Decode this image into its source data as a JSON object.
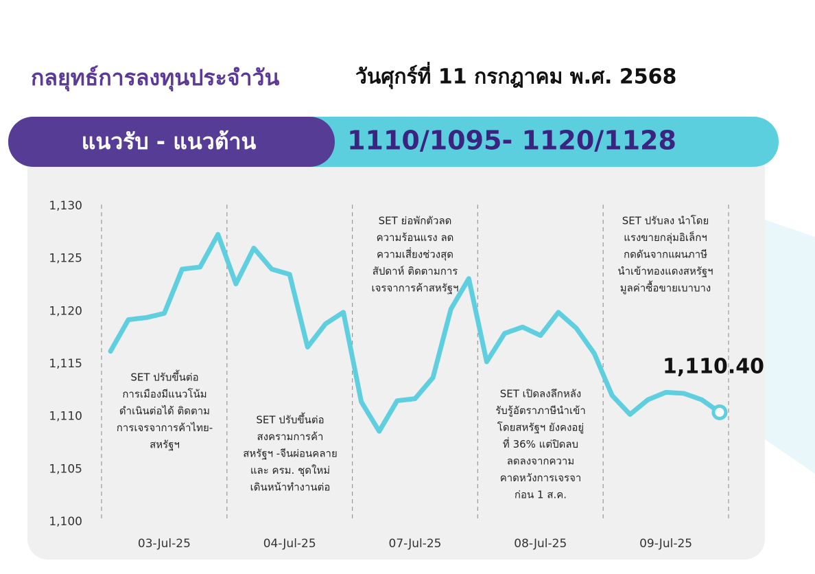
{
  "header": {
    "title": "กลยุทธ์การลงทุนประจำวัน",
    "date": "วันศุกร์ที่ 11 กรกฎาคม พ.ศ. 2568"
  },
  "banner": {
    "label": "แนวรับ - แนวต้าน",
    "levels": "1110/1095- 1120/1128"
  },
  "chart_data": {
    "type": "line",
    "color": "#5fcfe0",
    "categories": [
      null,
      null,
      null,
      "03-Jul-25",
      null,
      null,
      null,
      null,
      null,
      null,
      "04-Jul-25",
      null,
      null,
      null,
      null,
      null,
      null,
      "07-Jul-25",
      null,
      null,
      null,
      null,
      null,
      null,
      "08-Jul-25",
      null,
      null,
      null,
      null,
      null,
      null,
      "09-Jul-25",
      null,
      null,
      null
    ],
    "values": [
      1116.2,
      1119.2,
      1119.4,
      1119.8,
      1124.0,
      1124.2,
      1127.3,
      1122.6,
      1126.0,
      1124.0,
      1123.5,
      1116.6,
      1118.8,
      1119.9,
      1111.4,
      1108.6,
      1111.5,
      1111.7,
      1113.7,
      1120.2,
      1123.1,
      1115.2,
      1117.9,
      1118.5,
      1117.7,
      1119.9,
      1118.4,
      1116.0,
      1112.0,
      1110.2,
      1111.6,
      1112.3,
      1112.2,
      1111.6,
      1110.4
    ],
    "ylim": [
      1100,
      1130
    ],
    "yticks": [
      {
        "value": 1100,
        "label": "1,100"
      },
      {
        "value": 1105,
        "label": "1,105"
      },
      {
        "value": 1110,
        "label": "1,110"
      },
      {
        "value": 1115,
        "label": "1,115"
      },
      {
        "value": 1120,
        "label": "1,120"
      },
      {
        "value": 1125,
        "label": "1,125"
      },
      {
        "value": 1130,
        "label": "1,130"
      }
    ],
    "end_label": "1,110.40",
    "annotations": [
      [
        "SET ปรับขึ้นต่อ",
        "การเมืองมีแนวโน้ม",
        "ดำเนินต่อได้ ติดตาม",
        "การเจรจาการค้าไทย-",
        "สหรัฐฯ"
      ],
      [
        "SET ปรับขึ้นต่อ",
        "สงครามการค้า",
        "สหรัฐฯ -จีนผ่อนคลาย",
        "และ ครม. ชุดใหม่",
        "เดินหน้าทำงานต่อ"
      ],
      [
        "SET ย่อพักตัวลด",
        "ความร้อนแรง ลด",
        "ความเสี่ยงช่วงสุด",
        "สัปดาห์ ติดตามการ",
        "เจรจาการค้าสหรัฐฯ"
      ],
      [
        "SET เปิดลงลึกหลัง",
        "รับรู้อัตราภาษีนำเข้า",
        "โดยสหรัฐฯ ยังคงอยู่",
        "ที่ 36% แต่ปิดลบ",
        "ลดลงจากความ",
        "คาดหวังการเจรจา",
        "ก่อน 1 ส.ค."
      ],
      [
        "SET ปรับลง นำโดย",
        "แรงขายกลุ่มอิเล็กฯ",
        "กดดันจากแผนภาษี",
        "นำเข้าทองแดงสหรัฐฯ",
        "มูลค่าซื้อขายเบาบาง"
      ]
    ]
  }
}
